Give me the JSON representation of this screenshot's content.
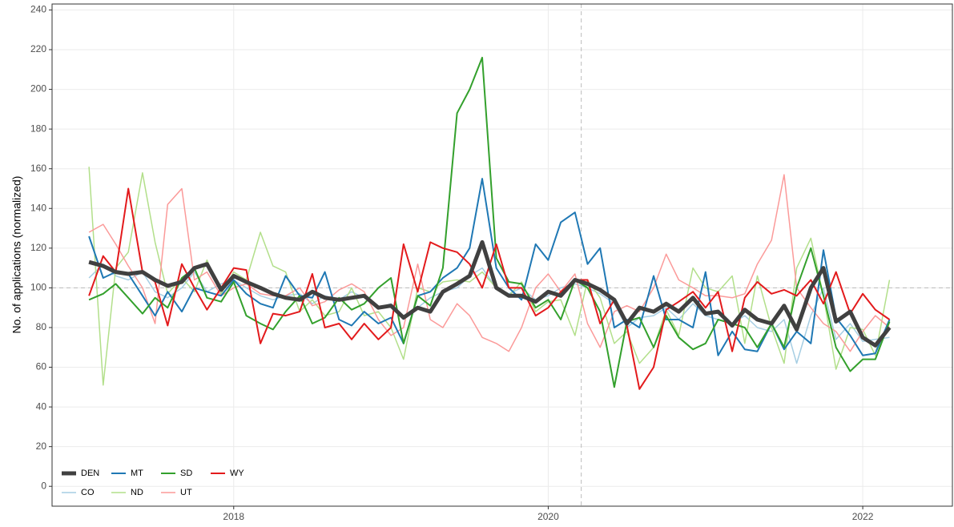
{
  "chart_data": {
    "type": "line",
    "y_label": "No. of applications (normalized)",
    "x": [
      2017.08,
      2017.17,
      2017.25,
      2017.33,
      2017.42,
      2017.5,
      2017.58,
      2017.67,
      2017.75,
      2017.83,
      2017.92,
      2018,
      2018.08,
      2018.17,
      2018.25,
      2018.33,
      2018.42,
      2018.5,
      2018.58,
      2018.67,
      2018.75,
      2018.83,
      2018.92,
      2019,
      2019.08,
      2019.17,
      2019.25,
      2019.33,
      2019.42,
      2019.5,
      2019.58,
      2019.67,
      2019.75,
      2019.83,
      2019.92,
      2020,
      2020.08,
      2020.17,
      2020.25,
      2020.33,
      2020.42,
      2020.5,
      2020.58,
      2020.67,
      2020.75,
      2020.83,
      2020.92,
      2021,
      2021.08,
      2021.17,
      2021.25,
      2021.33,
      2021.42,
      2021.5,
      2021.58,
      2021.67,
      2021.75,
      2021.83,
      2021.92,
      2022,
      2022.08,
      2022.17
    ],
    "series": [
      {
        "name": "CO",
        "color": "#a6cee3",
        "width": 1.5,
        "values": [
          105,
          112,
          106,
          104,
          108,
          98,
          95,
          100,
          108,
          98,
          102,
          104,
          100,
          96,
          94,
          96,
          97,
          92,
          96,
          94,
          98,
          95,
          90,
          92,
          84,
          90,
          95,
          98,
          100,
          106,
          110,
          100,
          97,
          100,
          94,
          96,
          100,
          102,
          100,
          97,
          92,
          80,
          85,
          86,
          90,
          84,
          92,
          86,
          84,
          82,
          86,
          80,
          78,
          84,
          62,
          86,
          100,
          74,
          82,
          73,
          74,
          75
        ]
      },
      {
        "name": "ND",
        "color": "#b2df8a",
        "width": 1.5,
        "values": [
          161,
          51,
          110,
          118,
          158,
          123,
          97,
          105,
          98,
          114,
          97,
          108,
          104,
          128,
          111,
          108,
          88,
          94,
          86,
          88,
          100,
          86,
          88,
          80,
          64,
          100,
          98,
          103,
          104,
          103,
          108,
          100,
          96,
          103,
          88,
          93,
          94,
          76,
          104,
          95,
          72,
          78,
          62,
          70,
          89,
          76,
          110,
          100,
          98,
          106,
          72,
          106,
          80,
          62,
          110,
          125,
          96,
          59,
          80,
          79,
          66,
          104
        ]
      },
      {
        "name": "UT",
        "color": "#fb9a99",
        "width": 1.5,
        "values": [
          128,
          132,
          122,
          111,
          100,
          82,
          142,
          150,
          104,
          108,
          96,
          100,
          102,
          97,
          96,
          96,
          100,
          91,
          93,
          99,
          102,
          98,
          84,
          76,
          80,
          112,
          84,
          80,
          92,
          86,
          75,
          72,
          68,
          80,
          100,
          107,
          98,
          107,
          82,
          70,
          88,
          91,
          88,
          100,
          117,
          104,
          100,
          96,
          96,
          95,
          97,
          112,
          124,
          157,
          100,
          90,
          82,
          78,
          68,
          78,
          86,
          80
        ]
      },
      {
        "name": "MT",
        "color": "#1f78b4",
        "width": 2,
        "values": [
          126,
          105,
          108,
          107,
          96,
          86,
          98,
          88,
          100,
          98,
          96,
          104,
          97,
          92,
          90,
          106,
          96,
          95,
          108,
          84,
          81,
          88,
          82,
          85,
          72,
          96,
          98,
          105,
          110,
          120,
          155,
          110,
          100,
          94,
          122,
          114,
          133,
          138,
          112,
          120,
          80,
          84,
          80,
          106,
          84,
          84,
          80,
          108,
          66,
          78,
          69,
          68,
          82,
          69,
          78,
          72,
          119,
          85,
          76,
          66,
          67,
          84
        ]
      },
      {
        "name": "SD",
        "color": "#33a02c",
        "width": 2,
        "values": [
          94,
          97,
          102,
          95,
          87,
          95,
          90,
          105,
          110,
          95,
          93,
          103,
          86,
          82,
          79,
          88,
          96,
          82,
          85,
          95,
          89,
          92,
          100,
          105,
          72,
          96,
          91,
          110,
          188,
          200,
          216,
          115,
          103,
          102,
          90,
          94,
          84,
          104,
          100,
          88,
          50,
          83,
          85,
          70,
          86,
          75,
          69,
          72,
          84,
          82,
          80,
          70,
          82,
          70,
          100,
          120,
          96,
          70,
          58,
          64,
          64,
          83
        ]
      },
      {
        "name": "WY",
        "color": "#e31a1c",
        "width": 2,
        "values": [
          96,
          116,
          108,
          150,
          108,
          103,
          81,
          112,
          100,
          89,
          100,
          110,
          109,
          72,
          87,
          86,
          88,
          107,
          80,
          82,
          74,
          82,
          74,
          80,
          122,
          98,
          123,
          120,
          118,
          112,
          100,
          122,
          100,
          100,
          86,
          90,
          98,
          104,
          104,
          82,
          94,
          81,
          49,
          60,
          89,
          93,
          98,
          90,
          98,
          68,
          95,
          103,
          97,
          99,
          96,
          104,
          92,
          108,
          87,
          97,
          89,
          84
        ]
      },
      {
        "name": "DEN",
        "color": "#404040",
        "width": 5,
        "values": [
          113,
          111,
          108,
          107,
          108,
          104,
          101,
          103,
          110,
          112,
          99,
          106,
          103,
          100,
          97,
          95,
          94,
          98,
          95,
          94,
          95,
          96,
          90,
          91,
          85,
          90,
          88,
          98,
          102,
          106,
          123,
          100,
          96,
          96,
          93,
          98,
          96,
          104,
          102,
          99,
          94,
          82,
          90,
          88,
          92,
          88,
          95,
          87,
          88,
          81,
          89,
          84,
          82,
          91,
          79,
          100,
          110,
          83,
          88,
          75,
          71,
          80
        ]
      }
    ],
    "legend_order": [
      6,
      3,
      4,
      5,
      0,
      1,
      2
    ],
    "xlim": [
      2016.845,
      2022.57
    ],
    "xticks": [
      2018,
      2020,
      2022
    ],
    "ylim": [
      -10,
      243
    ],
    "yticks": [
      0,
      20,
      40,
      60,
      80,
      100,
      120,
      140,
      160,
      180,
      200,
      220,
      240
    ],
    "hline": 100,
    "vline": 2020.21,
    "grid": true,
    "legend": "bottom-left"
  }
}
